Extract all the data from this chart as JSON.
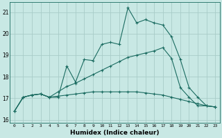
{
  "xlabel": "Humidex (Indice chaleur)",
  "bg_color": "#c8e8e4",
  "grid_color": "#a8ccc8",
  "line_color": "#1a6b60",
  "xlim": [
    -0.5,
    23.5
  ],
  "ylim": [
    15.85,
    21.45
  ],
  "yticks": [
    16,
    17,
    18,
    19,
    20,
    21
  ],
  "xticks": [
    0,
    1,
    2,
    3,
    4,
    5,
    6,
    7,
    8,
    9,
    10,
    11,
    12,
    13,
    14,
    15,
    16,
    17,
    18,
    19,
    20,
    21,
    22,
    23
  ],
  "series1_x": [
    0,
    1,
    2,
    3,
    4,
    5,
    6,
    7,
    8,
    9,
    10,
    11,
    12,
    13,
    14,
    15,
    16,
    17,
    18,
    19,
    20,
    21,
    22,
    23
  ],
  "series1_y": [
    16.4,
    17.05,
    17.15,
    17.2,
    17.05,
    17.05,
    18.5,
    17.75,
    18.8,
    18.75,
    19.5,
    19.6,
    19.5,
    21.2,
    20.5,
    20.65,
    20.5,
    20.4,
    19.85,
    18.8,
    17.5,
    17.05,
    16.65,
    16.6
  ],
  "series2_x": [
    0,
    1,
    2,
    3,
    4,
    5,
    6,
    7,
    8,
    9,
    10,
    11,
    12,
    13,
    14,
    15,
    16,
    17,
    18,
    19,
    20,
    21,
    22,
    23
  ],
  "series2_y": [
    16.4,
    17.05,
    17.15,
    17.2,
    17.05,
    17.3,
    17.55,
    17.7,
    17.9,
    18.1,
    18.3,
    18.5,
    18.7,
    18.9,
    19.0,
    19.1,
    19.2,
    19.35,
    18.85,
    17.5,
    17.05,
    16.65,
    16.65,
    16.6
  ],
  "series3_x": [
    0,
    1,
    2,
    3,
    4,
    5,
    6,
    7,
    8,
    9,
    10,
    11,
    12,
    13,
    14,
    15,
    16,
    17,
    18,
    19,
    20,
    21,
    22,
    23
  ],
  "series3_y": [
    16.4,
    17.05,
    17.15,
    17.2,
    17.05,
    17.1,
    17.15,
    17.2,
    17.25,
    17.3,
    17.3,
    17.3,
    17.3,
    17.3,
    17.3,
    17.25,
    17.2,
    17.15,
    17.05,
    16.95,
    16.85,
    16.75,
    16.65,
    16.6
  ]
}
